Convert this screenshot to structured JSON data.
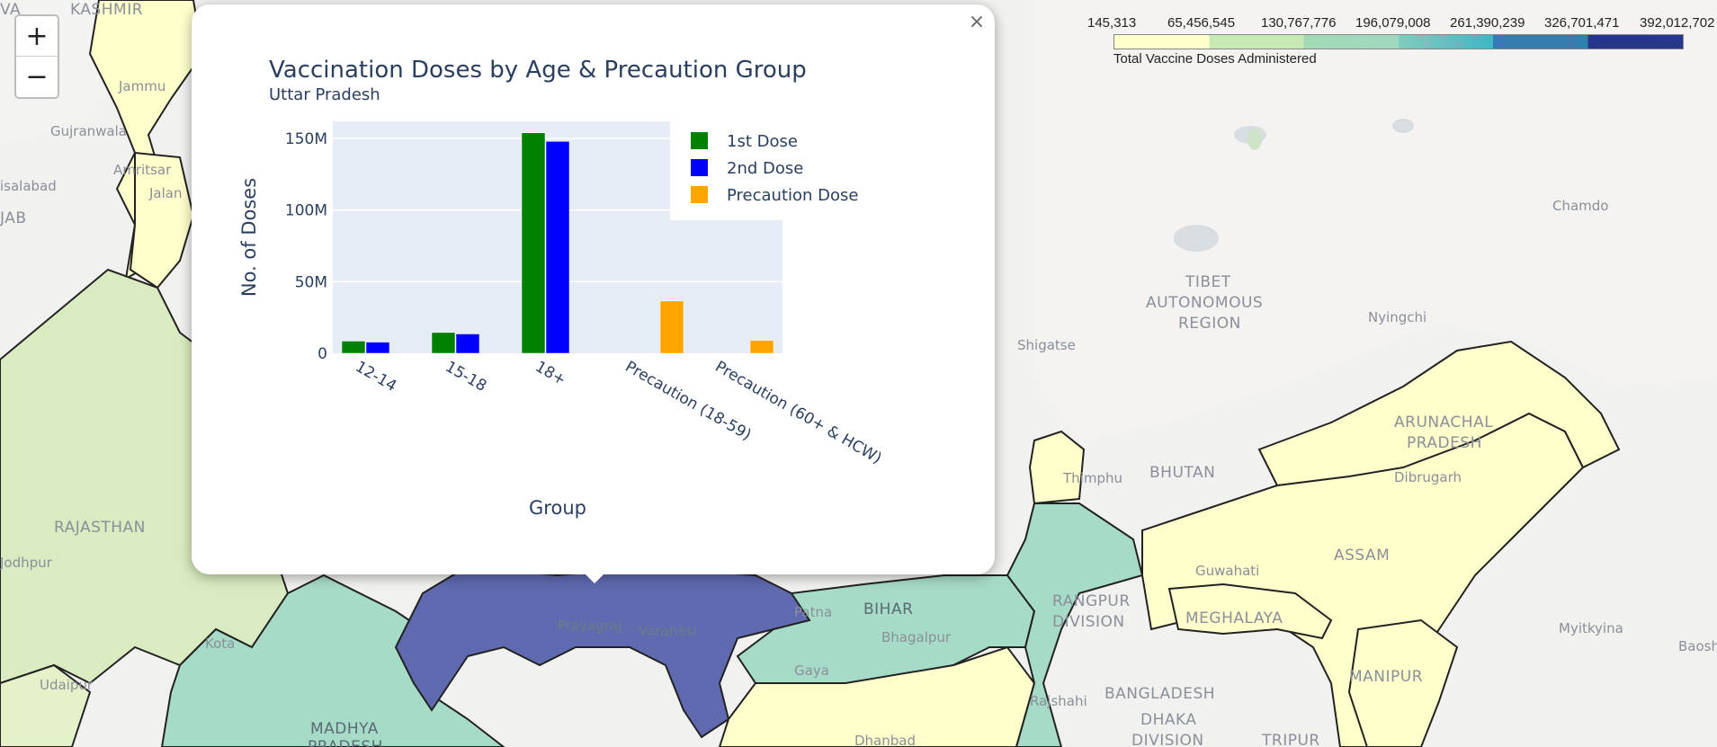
{
  "map": {
    "labels": {
      "kashmir": "KASHMIR",
      "punjab": "JAB",
      "rajasthan": "RAJASTHAN",
      "madhya_pradesh_1": "MADHYA",
      "madhya_pradesh_2": "PRADESH",
      "bihar": "BIHAR",
      "tibet_1": "TIBET",
      "tibet_2": "AUTONOMOUS",
      "tibet_3": "REGION",
      "bhutan": "BHUTAN",
      "arunachal_1": "ARUNACHAL",
      "arunachal_2": "PRADESH",
      "assam": "ASSAM",
      "meghalaya": "MEGHALAYA",
      "manipur": "MANIPUR",
      "rangpur_1": "RANGPUR",
      "rangpur_2": "DIVISION",
      "bangladesh": "BANGLADESH",
      "dhaka_1": "DHAKA",
      "dhaka_2": "DIVISION",
      "tripura": "TRIPUR",
      "va": "VA"
    },
    "cities": {
      "jammu": "Jammu",
      "gujranwala": "Gujranwala",
      "amritsar": "Amritsar",
      "jalandhar": "Jalan",
      "faisalabad": "isalabad",
      "jodhpur": "Jodhpur",
      "kota": "Kota",
      "udaipur": "Udaipur",
      "prayagraj": "Prayagraj",
      "varanasi": "Varanasi",
      "patna": "Patna",
      "bhagalpur": "Bhagalpur",
      "gaya": "Gaya",
      "dhanbad": "Dhanbad",
      "rajshahi": "Rajshahi",
      "thimphu": "Thimphu",
      "guwahati": "Guwahati",
      "dibrugarh": "Dibrugarh",
      "shigatse": "Shigatse",
      "nyingchi": "Nyingchi",
      "chamdo": "Chamdo",
      "myitkyina": "Myitkyina",
      "baoshan": "Baosh"
    }
  },
  "zoom": {
    "in_label": "+",
    "out_label": "−"
  },
  "legend": {
    "ticks": [
      "145,313",
      "65,456,545",
      "130,767,776",
      "196,079,008",
      "261,390,239",
      "326,701,471",
      "392,012,702"
    ],
    "caption": "Total Vaccine Doses Administered",
    "colors": [
      "#ffffcc",
      "#c7e9b4",
      "#a1dab4",
      "#7fcdbb",
      "#41b6c4",
      "#2c7fb8",
      "#253494"
    ]
  },
  "popup": {
    "close_label": "×"
  },
  "chart_data": {
    "type": "bar",
    "title": "Vaccination Doses by Age & Precaution Group",
    "subtitle": "Uttar Pradesh",
    "xlabel": "Group",
    "ylabel": "No. of Doses",
    "categories": [
      "12-14",
      "15-18",
      "18+",
      "Precaution (18-59)",
      "Precaution (60+ & HCW)"
    ],
    "y_ticks": [
      {
        "value": 0,
        "label": "0"
      },
      {
        "value": 50000000,
        "label": "50M"
      },
      {
        "value": 100000000,
        "label": "100M"
      },
      {
        "value": 150000000,
        "label": "150M"
      }
    ],
    "ylim": [
      0,
      162000000
    ],
    "grid": true,
    "legend_position": "top-right",
    "series": [
      {
        "name": "1st Dose",
        "color": "#008000",
        "values": [
          8500000,
          14500000,
          154000000,
          0,
          0
        ]
      },
      {
        "name": "2nd Dose",
        "color": "#0000ff",
        "values": [
          7800000,
          13500000,
          148000000,
          0,
          0
        ]
      },
      {
        "name": "Precaution Dose",
        "color": "#ffa500",
        "values": [
          0,
          0,
          0,
          36500000,
          9000000
        ]
      }
    ]
  }
}
